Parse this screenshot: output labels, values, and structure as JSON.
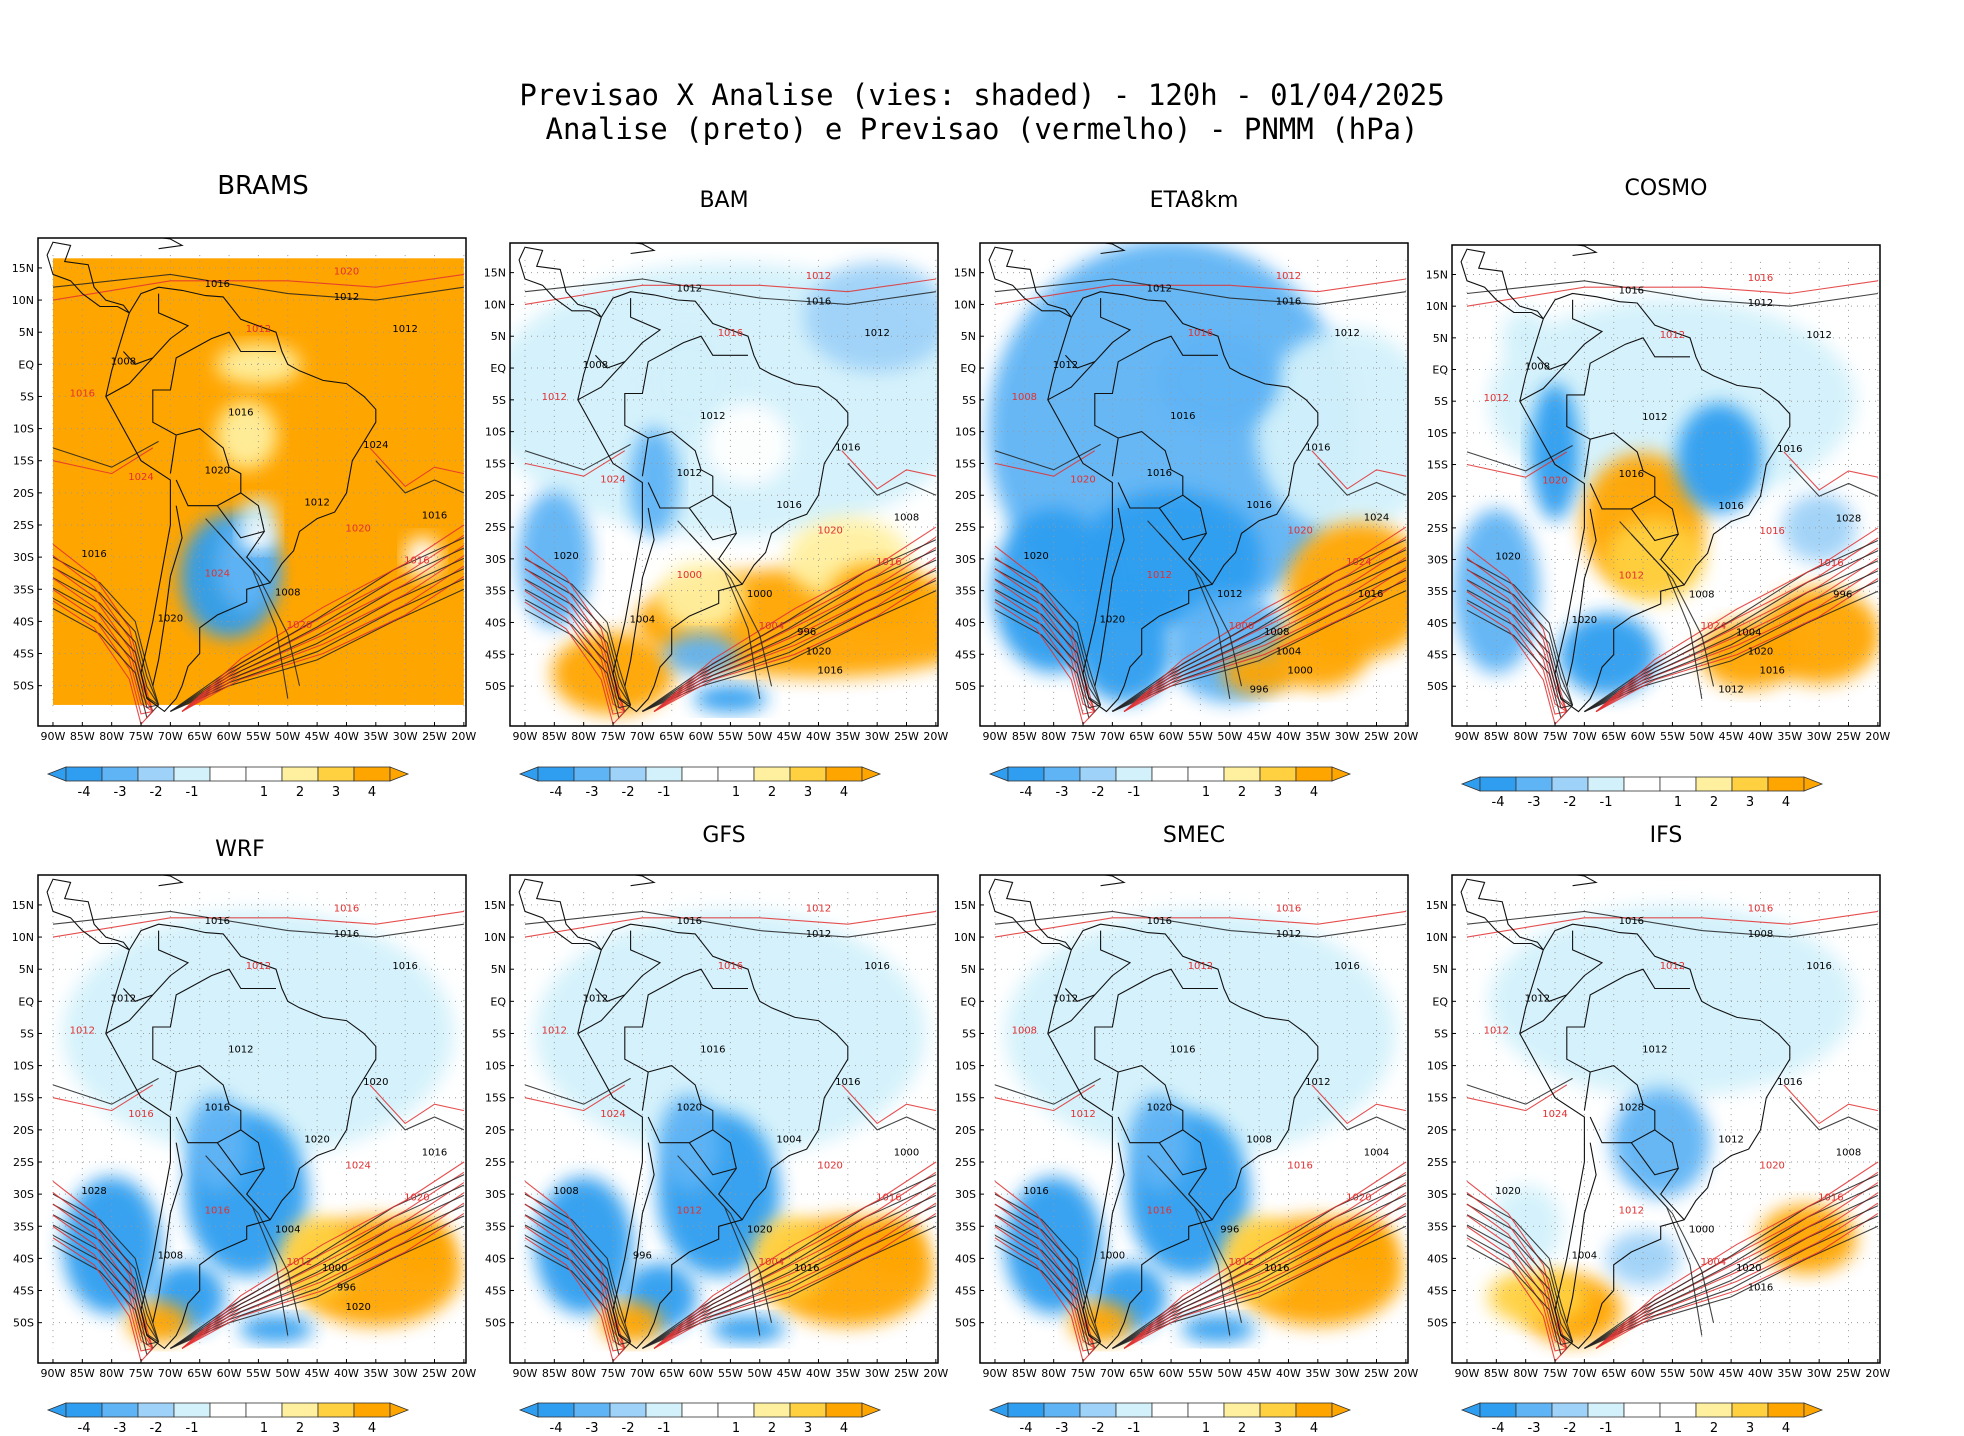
{
  "header": {
    "line1": "Previsao X Analise (vies: shaded) - 120h - 01/04/2025",
    "line2": "Analise (preto) e Previsao (vermelho) - PNMM (hPa)"
  },
  "lat_labels": [
    "15N",
    "10N",
    "5N",
    "EQ",
    "5S",
    "10S",
    "15S",
    "20S",
    "25S",
    "30S",
    "35S",
    "40S",
    "45S",
    "50S"
  ],
  "lon_labels": [
    "90W",
    "85W",
    "80W",
    "75W",
    "70W",
    "65W",
    "60W",
    "55W",
    "50W",
    "45W",
    "40W",
    "35W",
    "30W",
    "25W",
    "20W"
  ],
  "colorbar": {
    "labels": [
      "-4",
      "-3",
      "-2",
      "-1",
      "1",
      "2",
      "3",
      "4"
    ],
    "colors": [
      "#2f9ef0",
      "#5fb4f5",
      "#9fd2f8",
      "#d3f1fb",
      "#ffffff",
      "#fff0a0",
      "#ffd040",
      "#ffa500"
    ],
    "end_low": "#2f9ef0",
    "end_high": "#ffa500"
  },
  "panels": [
    {
      "model": "BRAMS",
      "bias": "warm-all",
      "labels_black": [
        "1016",
        "1012",
        "1008",
        "1012",
        "1016",
        "1024",
        "1020",
        "1016",
        "1012",
        "1016",
        "1020",
        "1008"
      ],
      "labels_red": [
        "1020",
        "1012",
        "1016",
        "1024",
        "1020",
        "1016",
        "1024",
        "1020"
      ]
    },
    {
      "model": "BAM",
      "bias": "warm-south",
      "labels_black": [
        "1012",
        "1016",
        "1008",
        "1012",
        "1012",
        "1016",
        "1012",
        "1020",
        "1016",
        "1008",
        "1004",
        "1000",
        "996",
        "1020",
        "1016"
      ],
      "labels_red": [
        "1012",
        "1016",
        "1012",
        "1024",
        "1020",
        "1016",
        "1000",
        "1004"
      ]
    },
    {
      "model": "ETA8km",
      "bias": "cold",
      "labels_black": [
        "1012",
        "1016",
        "1012",
        "1012",
        "1016",
        "1016",
        "1016",
        "1020",
        "1016",
        "1024",
        "1020",
        "1012",
        "1008",
        "1004",
        "1000",
        "996",
        "1016"
      ],
      "labels_red": [
        "1012",
        "1016",
        "1008",
        "1020",
        "1020",
        "1024",
        "1012",
        "1000"
      ]
    },
    {
      "model": "COSMO",
      "bias": "mixed",
      "labels_black": [
        "1016",
        "1012",
        "1008",
        "1012",
        "1012",
        "1016",
        "1016",
        "1020",
        "1016",
        "1028",
        "1020",
        "1008",
        "1004",
        "1020",
        "1016",
        "1012",
        "996"
      ],
      "labels_red": [
        "1016",
        "1012",
        "1012",
        "1020",
        "1016",
        "1016",
        "1012",
        "1024"
      ]
    },
    {
      "model": "WRF",
      "bias": "cold-south",
      "labels_black": [
        "1016",
        "1016",
        "1012",
        "1016",
        "1012",
        "1020",
        "1016",
        "1028",
        "1020",
        "1016",
        "1008",
        "1004",
        "1000",
        "996",
        "1020"
      ],
      "labels_red": [
        "1016",
        "1012",
        "1012",
        "1016",
        "1024",
        "1020",
        "1016",
        "1012"
      ]
    },
    {
      "model": "GFS",
      "bias": "cold-south",
      "labels_black": [
        "1016",
        "1012",
        "1012",
        "1016",
        "1016",
        "1016",
        "1020",
        "1008",
        "1004",
        "1000",
        "996",
        "1020",
        "1016"
      ],
      "labels_red": [
        "1012",
        "1016",
        "1012",
        "1024",
        "1020",
        "1016",
        "1012",
        "1004"
      ]
    },
    {
      "model": "SMEC",
      "bias": "cold-south",
      "labels_black": [
        "1016",
        "1012",
        "1012",
        "1016",
        "1016",
        "1012",
        "1020",
        "1016",
        "1008",
        "1004",
        "1000",
        "996",
        "1016"
      ],
      "labels_red": [
        "1016",
        "1012",
        "1008",
        "1012",
        "1016",
        "1020",
        "1016",
        "1012"
      ]
    },
    {
      "model": "IFS",
      "bias": "mostly-neutral",
      "labels_black": [
        "1016",
        "1008",
        "1012",
        "1016",
        "1012",
        "1016",
        "1028",
        "1020",
        "1012",
        "1008",
        "1004",
        "1000",
        "1020",
        "1016"
      ],
      "labels_red": [
        "1016",
        "1012",
        "1012",
        "1024",
        "1020",
        "1016",
        "1012",
        "1004"
      ]
    }
  ]
}
